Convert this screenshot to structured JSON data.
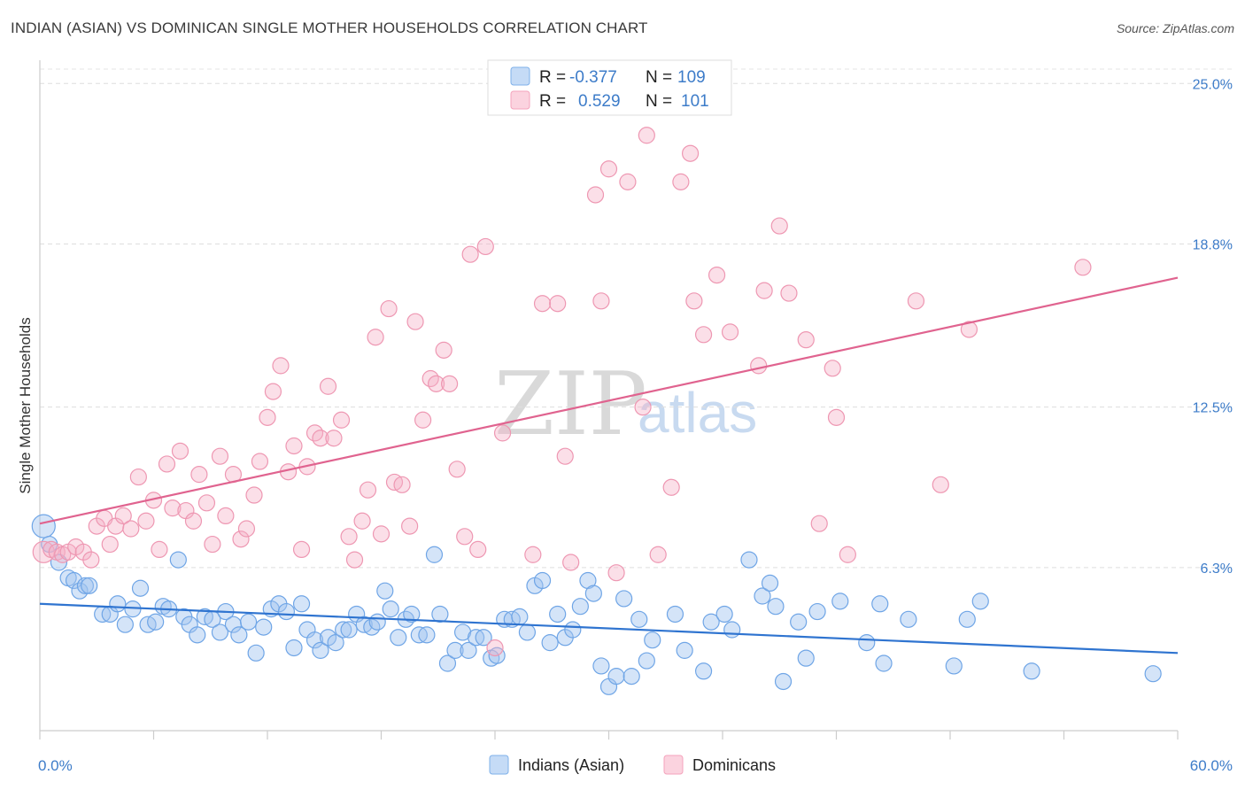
{
  "header": {
    "title": "INDIAN (ASIAN) VS DOMINICAN SINGLE MOTHER HOUSEHOLDS CORRELATION CHART",
    "source": "Source: ZipAtlas.com"
  },
  "watermark": {
    "zip": "ZIP",
    "atlas": "atlas"
  },
  "legend": {
    "rows": [
      {
        "r_label": "R =",
        "r_value": "-0.377",
        "n_label": "N =",
        "n_value": "109",
        "color": "#9ec3ee"
      },
      {
        "r_label": "R =",
        "r_value": "0.529",
        "n_label": "N =",
        "n_value": "101",
        "color": "#f4b6c8"
      }
    ]
  },
  "bottom_legend": {
    "items": [
      {
        "label": "Indians (Asian)",
        "color": "#9ec3ee"
      },
      {
        "label": "Dominicans",
        "color": "#f4b6c8"
      }
    ]
  },
  "chart_data": {
    "type": "scatter",
    "title": "INDIAN (ASIAN) VS DOMINICAN SINGLE MOTHER HOUSEHOLDS CORRELATION CHART",
    "xlabel": "",
    "ylabel": "Single Mother Households",
    "xlim": [
      0,
      60
    ],
    "ylim": [
      0,
      25.9
    ],
    "x_tick_labels": [
      "0.0%",
      "60.0%"
    ],
    "y_ticks": [
      6.3,
      12.5,
      18.8,
      25.0
    ],
    "y_tick_labels": [
      "6.3%",
      "12.5%",
      "18.8%",
      "25.0%"
    ],
    "grid": "horizontal dashed",
    "legend_position": "top-center",
    "colors": {
      "indians": "#7fb1ea",
      "indians_line": "#2f74d0",
      "dominicans": "#f4a3bc",
      "dominicans_line": "#e0638f"
    },
    "series": [
      {
        "name": "Indians (Asian)",
        "r": -0.377,
        "n": 109,
        "trend": {
          "x": [
            0,
            60
          ],
          "y": [
            4.9,
            3.0
          ]
        },
        "points": [
          [
            0.2,
            7.9
          ],
          [
            0.5,
            7.2
          ],
          [
            1.0,
            6.5
          ],
          [
            1.5,
            5.9
          ],
          [
            1.8,
            5.8
          ],
          [
            2.1,
            5.4
          ],
          [
            2.4,
            5.6
          ],
          [
            2.6,
            5.6
          ],
          [
            3.3,
            4.5
          ],
          [
            3.7,
            4.5
          ],
          [
            4.1,
            4.9
          ],
          [
            4.5,
            4.1
          ],
          [
            4.9,
            4.7
          ],
          [
            5.3,
            5.5
          ],
          [
            5.7,
            4.1
          ],
          [
            6.1,
            4.2
          ],
          [
            6.5,
            4.8
          ],
          [
            6.8,
            4.7
          ],
          [
            7.3,
            6.6
          ],
          [
            7.6,
            4.4
          ],
          [
            7.9,
            4.1
          ],
          [
            8.3,
            3.7
          ],
          [
            8.7,
            4.4
          ],
          [
            9.1,
            4.3
          ],
          [
            9.5,
            3.8
          ],
          [
            9.8,
            4.6
          ],
          [
            10.2,
            4.1
          ],
          [
            10.5,
            3.7
          ],
          [
            11.0,
            4.2
          ],
          [
            11.4,
            3.0
          ],
          [
            11.8,
            4.0
          ],
          [
            12.2,
            4.7
          ],
          [
            12.6,
            4.9
          ],
          [
            13.0,
            4.6
          ],
          [
            13.4,
            3.2
          ],
          [
            13.8,
            4.9
          ],
          [
            14.1,
            3.9
          ],
          [
            14.5,
            3.5
          ],
          [
            14.8,
            3.1
          ],
          [
            15.2,
            3.6
          ],
          [
            15.6,
            3.4
          ],
          [
            16.0,
            3.9
          ],
          [
            16.3,
            3.9
          ],
          [
            16.7,
            4.5
          ],
          [
            17.1,
            4.1
          ],
          [
            17.5,
            4.0
          ],
          [
            17.8,
            4.2
          ],
          [
            18.2,
            5.4
          ],
          [
            18.5,
            4.7
          ],
          [
            18.9,
            3.6
          ],
          [
            19.3,
            4.3
          ],
          [
            19.6,
            4.5
          ],
          [
            20.0,
            3.7
          ],
          [
            20.4,
            3.7
          ],
          [
            20.8,
            6.8
          ],
          [
            21.1,
            4.5
          ],
          [
            21.5,
            2.6
          ],
          [
            21.9,
            3.1
          ],
          [
            22.3,
            3.8
          ],
          [
            22.6,
            3.1
          ],
          [
            23.0,
            3.6
          ],
          [
            23.4,
            3.6
          ],
          [
            23.8,
            2.8
          ],
          [
            24.1,
            2.9
          ],
          [
            24.5,
            4.3
          ],
          [
            24.9,
            4.3
          ],
          [
            25.3,
            4.4
          ],
          [
            25.7,
            3.8
          ],
          [
            26.1,
            5.6
          ],
          [
            26.5,
            5.8
          ],
          [
            26.9,
            3.4
          ],
          [
            27.3,
            4.5
          ],
          [
            27.7,
            3.6
          ],
          [
            28.1,
            3.9
          ],
          [
            28.5,
            4.8
          ],
          [
            28.9,
            5.8
          ],
          [
            29.2,
            5.3
          ],
          [
            29.6,
            2.5
          ],
          [
            30.0,
            1.7
          ],
          [
            30.4,
            2.1
          ],
          [
            30.8,
            5.1
          ],
          [
            31.2,
            2.1
          ],
          [
            31.6,
            4.3
          ],
          [
            32.0,
            2.7
          ],
          [
            32.3,
            3.5
          ],
          [
            33.5,
            4.5
          ],
          [
            34.0,
            3.1
          ],
          [
            35.0,
            2.3
          ],
          [
            35.4,
            4.2
          ],
          [
            36.1,
            4.5
          ],
          [
            36.5,
            3.9
          ],
          [
            37.4,
            6.6
          ],
          [
            38.1,
            5.2
          ],
          [
            38.5,
            5.7
          ],
          [
            38.8,
            4.8
          ],
          [
            39.2,
            1.9
          ],
          [
            40.0,
            4.2
          ],
          [
            40.4,
            2.8
          ],
          [
            41.0,
            4.6
          ],
          [
            42.2,
            5.0
          ],
          [
            43.6,
            3.4
          ],
          [
            44.3,
            4.9
          ],
          [
            44.5,
            2.6
          ],
          [
            45.8,
            4.3
          ],
          [
            48.2,
            2.5
          ],
          [
            48.9,
            4.3
          ],
          [
            49.6,
            5.0
          ],
          [
            52.3,
            2.3
          ],
          [
            58.7,
            2.2
          ]
        ]
      },
      {
        "name": "Dominicans",
        "r": 0.529,
        "n": 101,
        "trend": {
          "x": [
            0,
            60
          ],
          "y": [
            8.0,
            17.5
          ]
        },
        "points": [
          [
            0.2,
            6.9
          ],
          [
            0.6,
            7.0
          ],
          [
            0.9,
            6.9
          ],
          [
            1.2,
            6.8
          ],
          [
            1.5,
            6.9
          ],
          [
            1.9,
            7.1
          ],
          [
            2.3,
            6.9
          ],
          [
            2.7,
            6.6
          ],
          [
            3.0,
            7.9
          ],
          [
            3.4,
            8.2
          ],
          [
            3.7,
            7.2
          ],
          [
            4.0,
            7.9
          ],
          [
            4.4,
            8.3
          ],
          [
            4.8,
            7.8
          ],
          [
            5.2,
            9.8
          ],
          [
            5.6,
            8.1
          ],
          [
            6.0,
            8.9
          ],
          [
            6.3,
            7.0
          ],
          [
            6.7,
            10.3
          ],
          [
            7.0,
            8.6
          ],
          [
            7.4,
            10.8
          ],
          [
            7.7,
            8.5
          ],
          [
            8.1,
            8.1
          ],
          [
            8.4,
            9.9
          ],
          [
            8.8,
            8.8
          ],
          [
            9.1,
            7.2
          ],
          [
            9.5,
            10.6
          ],
          [
            9.8,
            8.3
          ],
          [
            10.2,
            9.9
          ],
          [
            10.6,
            7.4
          ],
          [
            10.9,
            7.8
          ],
          [
            11.3,
            9.1
          ],
          [
            11.6,
            10.4
          ],
          [
            12.0,
            12.1
          ],
          [
            12.3,
            13.1
          ],
          [
            12.7,
            14.1
          ],
          [
            13.1,
            10.0
          ],
          [
            13.4,
            11.0
          ],
          [
            13.8,
            7.0
          ],
          [
            14.1,
            10.2
          ],
          [
            14.5,
            11.5
          ],
          [
            14.8,
            11.3
          ],
          [
            15.2,
            13.3
          ],
          [
            15.5,
            11.3
          ],
          [
            15.9,
            12.0
          ],
          [
            16.3,
            7.5
          ],
          [
            16.6,
            6.6
          ],
          [
            17.0,
            8.1
          ],
          [
            17.3,
            9.3
          ],
          [
            17.7,
            15.2
          ],
          [
            18.0,
            7.6
          ],
          [
            18.4,
            16.3
          ],
          [
            18.7,
            9.6
          ],
          [
            19.1,
            9.5
          ],
          [
            19.5,
            7.9
          ],
          [
            19.8,
            15.8
          ],
          [
            20.2,
            12.0
          ],
          [
            20.6,
            13.6
          ],
          [
            20.9,
            13.4
          ],
          [
            21.3,
            14.7
          ],
          [
            21.6,
            13.4
          ],
          [
            22.0,
            10.1
          ],
          [
            22.4,
            7.5
          ],
          [
            22.7,
            18.4
          ],
          [
            23.1,
            7.0
          ],
          [
            23.5,
            18.7
          ],
          [
            24.0,
            3.2
          ],
          [
            24.4,
            11.5
          ],
          [
            26.0,
            6.8
          ],
          [
            26.5,
            16.5
          ],
          [
            27.3,
            16.5
          ],
          [
            27.7,
            10.6
          ],
          [
            28.0,
            6.5
          ],
          [
            29.3,
            20.7
          ],
          [
            29.6,
            16.6
          ],
          [
            30.0,
            21.7
          ],
          [
            30.4,
            6.1
          ],
          [
            31.0,
            21.2
          ],
          [
            31.8,
            12.5
          ],
          [
            32.0,
            23.0
          ],
          [
            32.6,
            6.8
          ],
          [
            33.3,
            9.4
          ],
          [
            33.8,
            21.2
          ],
          [
            34.3,
            22.3
          ],
          [
            34.5,
            16.6
          ],
          [
            35.0,
            15.3
          ],
          [
            35.7,
            17.6
          ],
          [
            36.4,
            15.4
          ],
          [
            37.9,
            14.1
          ],
          [
            38.2,
            17.0
          ],
          [
            39.0,
            19.5
          ],
          [
            39.5,
            16.9
          ],
          [
            40.4,
            15.1
          ],
          [
            41.1,
            8.0
          ],
          [
            41.8,
            14.0
          ],
          [
            42.0,
            12.1
          ],
          [
            42.6,
            6.8
          ],
          [
            46.2,
            16.6
          ],
          [
            47.5,
            9.5
          ],
          [
            49.0,
            15.5
          ],
          [
            55.0,
            17.9
          ]
        ]
      }
    ]
  }
}
